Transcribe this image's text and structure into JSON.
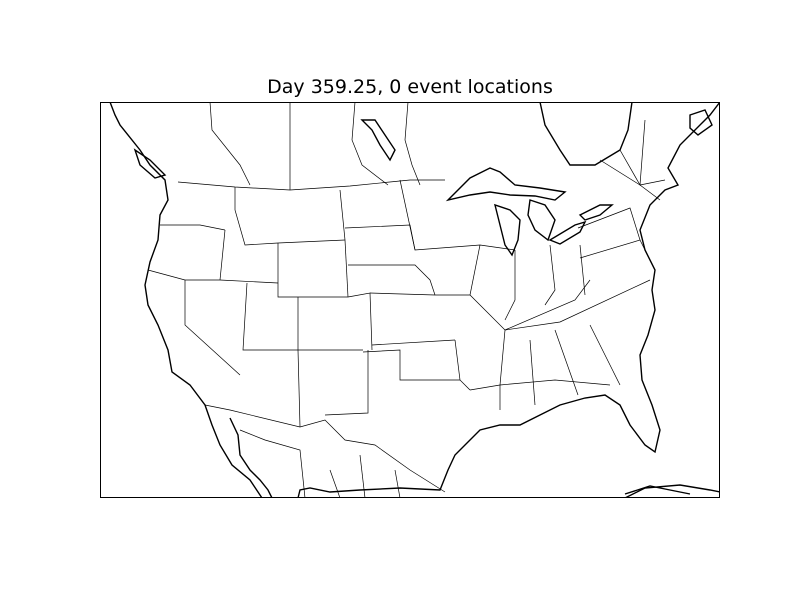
{
  "title": "Day 359.25, 0 event locations",
  "map": {
    "region": "North America (contiguous US, southern Canada, northern Mexico)",
    "event_count": 0,
    "day": 359.25,
    "colors": {
      "background": "#ffffff",
      "lines": "#000000"
    }
  }
}
